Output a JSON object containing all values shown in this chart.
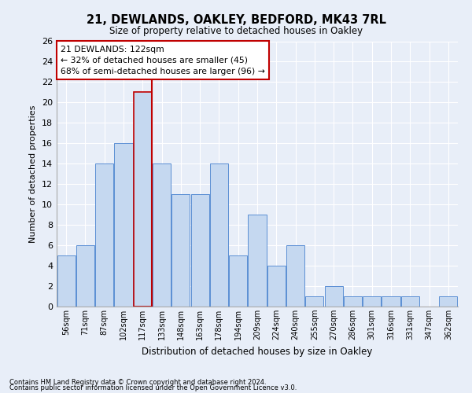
{
  "title": "21, DEWLANDS, OAKLEY, BEDFORD, MK43 7RL",
  "subtitle": "Size of property relative to detached houses in Oakley",
  "xlabel": "Distribution of detached houses by size in Oakley",
  "ylabel": "Number of detached properties",
  "footnote1": "Contains HM Land Registry data © Crown copyright and database right 2024.",
  "footnote2": "Contains public sector information licensed under the Open Government Licence v3.0.",
  "annotation_line1": "21 DEWLANDS: 122sqm",
  "annotation_line2": "← 32% of detached houses are smaller (45)",
  "annotation_line3": "68% of semi-detached houses are larger (96) →",
  "bar_labels": [
    "56sqm",
    "71sqm",
    "87sqm",
    "102sqm",
    "117sqm",
    "133sqm",
    "148sqm",
    "163sqm",
    "178sqm",
    "194sqm",
    "209sqm",
    "224sqm",
    "240sqm",
    "255sqm",
    "270sqm",
    "286sqm",
    "301sqm",
    "316sqm",
    "331sqm",
    "347sqm",
    "362sqm"
  ],
  "bar_values": [
    5,
    6,
    14,
    16,
    21,
    14,
    11,
    11,
    14,
    5,
    9,
    4,
    6,
    1,
    2,
    1,
    1,
    1,
    1,
    0,
    1
  ],
  "bar_color": "#c5d8f0",
  "bar_edge_color": "#5b8fd4",
  "highlight_bar_index": 4,
  "highlight_edge_color": "#c00000",
  "vline_color": "#c00000",
  "bg_color": "#e8eef8",
  "annotation_box_color": "#ffffff",
  "annotation_box_edge": "#c00000",
  "ylim": [
    0,
    26
  ],
  "yticks": [
    0,
    2,
    4,
    6,
    8,
    10,
    12,
    14,
    16,
    18,
    20,
    22,
    24,
    26
  ]
}
